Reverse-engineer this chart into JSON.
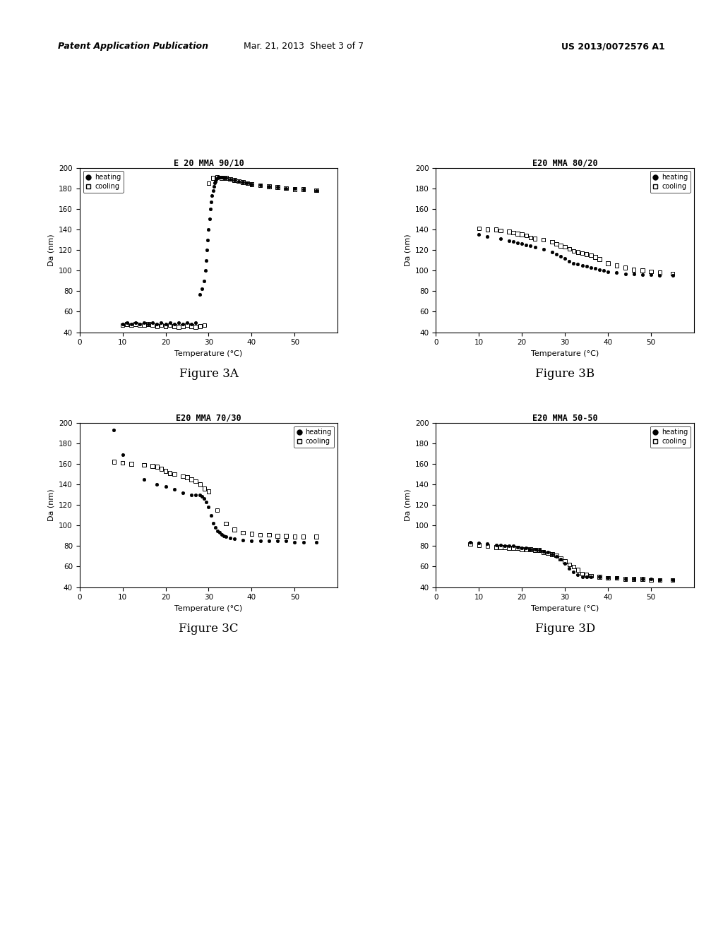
{
  "figA": {
    "title": "E 20 MMA 90/10",
    "heating_x": [
      10,
      11,
      12,
      13,
      14,
      15,
      16,
      17,
      18,
      19,
      20,
      21,
      22,
      23,
      24,
      25,
      26,
      27,
      28,
      28.5,
      29,
      29.2,
      29.4,
      29.6,
      29.8,
      30.0,
      30.2,
      30.4,
      30.6,
      30.8,
      31.0,
      31.2,
      31.4,
      31.6,
      31.8,
      32.0,
      32.2,
      32.4,
      32.6,
      32.8,
      33.0,
      33.5,
      34,
      35,
      36,
      37,
      38,
      39,
      40,
      42,
      44,
      46,
      48,
      50,
      52,
      55
    ],
    "heating_y": [
      48,
      49,
      48,
      49,
      48,
      49,
      48,
      49,
      48,
      49,
      48,
      49,
      48,
      49,
      48,
      49,
      48,
      49,
      77,
      82,
      90,
      100,
      110,
      120,
      130,
      140,
      150,
      160,
      167,
      173,
      178,
      182,
      185,
      187,
      189,
      190,
      191,
      191,
      191,
      191,
      191,
      190,
      190,
      189,
      188,
      187,
      186,
      185,
      184,
      183,
      182,
      181,
      180,
      180,
      179,
      178
    ],
    "cooling_x": [
      10,
      11,
      12,
      13,
      14,
      15,
      16,
      17,
      18,
      19,
      20,
      21,
      22,
      23,
      24,
      25,
      26,
      27,
      28,
      29,
      30,
      31,
      32,
      33,
      34,
      35,
      36,
      37,
      38,
      39,
      40,
      42,
      44,
      46,
      48,
      50,
      52,
      55
    ],
    "cooling_y": [
      47,
      48,
      47,
      48,
      47,
      47,
      48,
      47,
      46,
      47,
      46,
      47,
      46,
      45,
      46,
      47,
      46,
      45,
      46,
      47,
      185,
      190,
      191,
      190,
      190,
      189,
      188,
      187,
      186,
      185,
      184,
      183,
      182,
      181,
      180,
      179,
      179,
      178
    ]
  },
  "figB": {
    "title": "E20 MMA 80/20",
    "heating_x": [
      10,
      12,
      15,
      17,
      18,
      19,
      20,
      21,
      22,
      23,
      25,
      27,
      28,
      29,
      30,
      31,
      32,
      33,
      34,
      35,
      36,
      37,
      38,
      39,
      40,
      42,
      44,
      46,
      48,
      50,
      52,
      55
    ],
    "heating_y": [
      135,
      133,
      131,
      129,
      128,
      127,
      126,
      125,
      124,
      123,
      121,
      118,
      116,
      114,
      112,
      109,
      107,
      106,
      105,
      104,
      103,
      102,
      101,
      100,
      99,
      98,
      97,
      97,
      96,
      96,
      95,
      95
    ],
    "cooling_x": [
      10,
      12,
      14,
      15,
      17,
      18,
      19,
      20,
      21,
      22,
      23,
      25,
      27,
      28,
      29,
      30,
      31,
      32,
      33,
      34,
      35,
      36,
      37,
      38,
      40,
      42,
      44,
      46,
      48,
      50,
      52,
      55
    ],
    "cooling_y": [
      141,
      140,
      140,
      139,
      138,
      137,
      136,
      135,
      134,
      132,
      131,
      130,
      128,
      126,
      124,
      123,
      121,
      119,
      118,
      117,
      116,
      115,
      113,
      111,
      107,
      105,
      103,
      101,
      100,
      99,
      98,
      97
    ]
  },
  "figC": {
    "title": "E20 MMA 70/30",
    "heating_x": [
      8,
      10,
      15,
      18,
      20,
      22,
      24,
      26,
      27,
      28,
      28.5,
      29.0,
      29.5,
      30.0,
      30.5,
      31.0,
      31.5,
      32.0,
      32.5,
      33.0,
      33.5,
      34.0,
      35,
      36,
      38,
      40,
      42,
      44,
      46,
      48,
      50,
      52,
      55
    ],
    "heating_y": [
      193,
      169,
      145,
      140,
      138,
      135,
      132,
      130,
      130,
      130,
      128,
      126,
      123,
      118,
      110,
      102,
      98,
      95,
      93,
      91,
      90,
      89,
      88,
      87,
      86,
      85,
      85,
      85,
      85,
      85,
      84,
      84,
      84
    ],
    "cooling_x": [
      8,
      10,
      12,
      15,
      17,
      18,
      19,
      20,
      21,
      22,
      24,
      25,
      26,
      27,
      28,
      29,
      30,
      32,
      34,
      36,
      38,
      40,
      42,
      44,
      46,
      48,
      50,
      52,
      55
    ],
    "cooling_y": [
      162,
      161,
      160,
      159,
      158,
      157,
      155,
      153,
      151,
      150,
      148,
      147,
      145,
      143,
      140,
      136,
      133,
      115,
      102,
      96,
      93,
      92,
      91,
      91,
      90,
      90,
      89,
      89,
      89
    ]
  },
  "figD": {
    "title": "E20 MMA 50-50",
    "heating_x": [
      8,
      10,
      12,
      14,
      15,
      16,
      17,
      18,
      19,
      20,
      21,
      22,
      23,
      24,
      25,
      26,
      27,
      28,
      29,
      30,
      31,
      32,
      33,
      34,
      35,
      36,
      38,
      40,
      42,
      44,
      46,
      48,
      50,
      52,
      55
    ],
    "heating_y": [
      84,
      83,
      82,
      81,
      81,
      80,
      80,
      80,
      79,
      78,
      78,
      77,
      77,
      76,
      75,
      74,
      72,
      70,
      67,
      63,
      58,
      55,
      52,
      50,
      50,
      50,
      50,
      49,
      49,
      48,
      48,
      48,
      48,
      47,
      47
    ],
    "cooling_x": [
      8,
      10,
      12,
      14,
      15,
      16,
      17,
      18,
      19,
      20,
      21,
      22,
      23,
      24,
      25,
      26,
      27,
      28,
      29,
      30,
      31,
      32,
      33,
      34,
      35,
      36,
      38,
      40,
      42,
      44,
      46,
      48,
      50,
      52,
      55
    ],
    "cooling_y": [
      82,
      81,
      80,
      79,
      79,
      79,
      78,
      78,
      78,
      77,
      77,
      77,
      76,
      76,
      74,
      73,
      72,
      71,
      68,
      65,
      62,
      60,
      57,
      53,
      52,
      51,
      50,
      49,
      49,
      48,
      48,
      48,
      47,
      47,
      47
    ]
  },
  "figure_labels": [
    "Figure 3A",
    "Figure 3B",
    "Figure 3C",
    "Figure 3D"
  ],
  "legend_loc": [
    "upper left",
    "upper right",
    "upper right",
    "upper right"
  ],
  "ylabel": "Da (nm)",
  "xlabel": "Temperature (°C)",
  "ylim": [
    40,
    200
  ],
  "xlim": [
    0,
    60
  ],
  "yticks": [
    40,
    60,
    80,
    100,
    120,
    140,
    160,
    180,
    200
  ],
  "xticks": [
    0,
    10,
    20,
    30,
    40,
    50
  ],
  "header_left": "Patent Application Publication",
  "header_center": "Mar. 21, 2013  Sheet 3 of 7",
  "header_right": "US 2013/0072576 A1",
  "background_color": "#ffffff",
  "marker_color": "#000000",
  "title_fontsize": 8.5,
  "axis_fontsize": 7.5,
  "label_fontsize": 8,
  "fig_label_fontsize": 12
}
